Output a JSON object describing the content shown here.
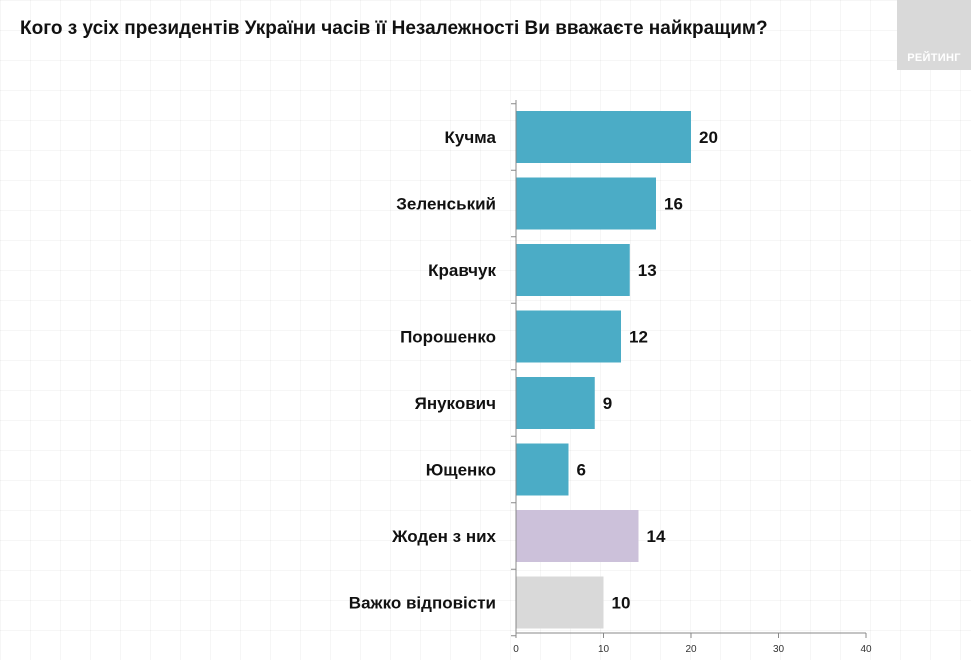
{
  "title": "Кого з усіх президентів України часів її Незалежності Ви вважаєте найкращим?",
  "logo_text": "РЕЙТИНГ",
  "chart_data": {
    "type": "bar",
    "orientation": "horizontal",
    "categories": [
      "Кучма",
      "Зеленський",
      "Кравчук",
      "Порошенко",
      "Янукович",
      "Ющенко",
      "Жоден з них",
      "Важко відповісти"
    ],
    "values": [
      20,
      16,
      13,
      12,
      9,
      6,
      14,
      10
    ],
    "colors": [
      "#4bacc6",
      "#4bacc6",
      "#4bacc6",
      "#4bacc6",
      "#4bacc6",
      "#4bacc6",
      "#ccc1da",
      "#d9d9d9"
    ],
    "xlim": [
      0,
      40
    ],
    "xticks": [
      "0",
      "10",
      "20",
      "30",
      "40"
    ],
    "title": "Кого з усіх президентів України часів її Незалежності Ви вважаєте найкращим?",
    "xlabel": "",
    "ylabel": "",
    "grid": false,
    "legend": "none"
  }
}
